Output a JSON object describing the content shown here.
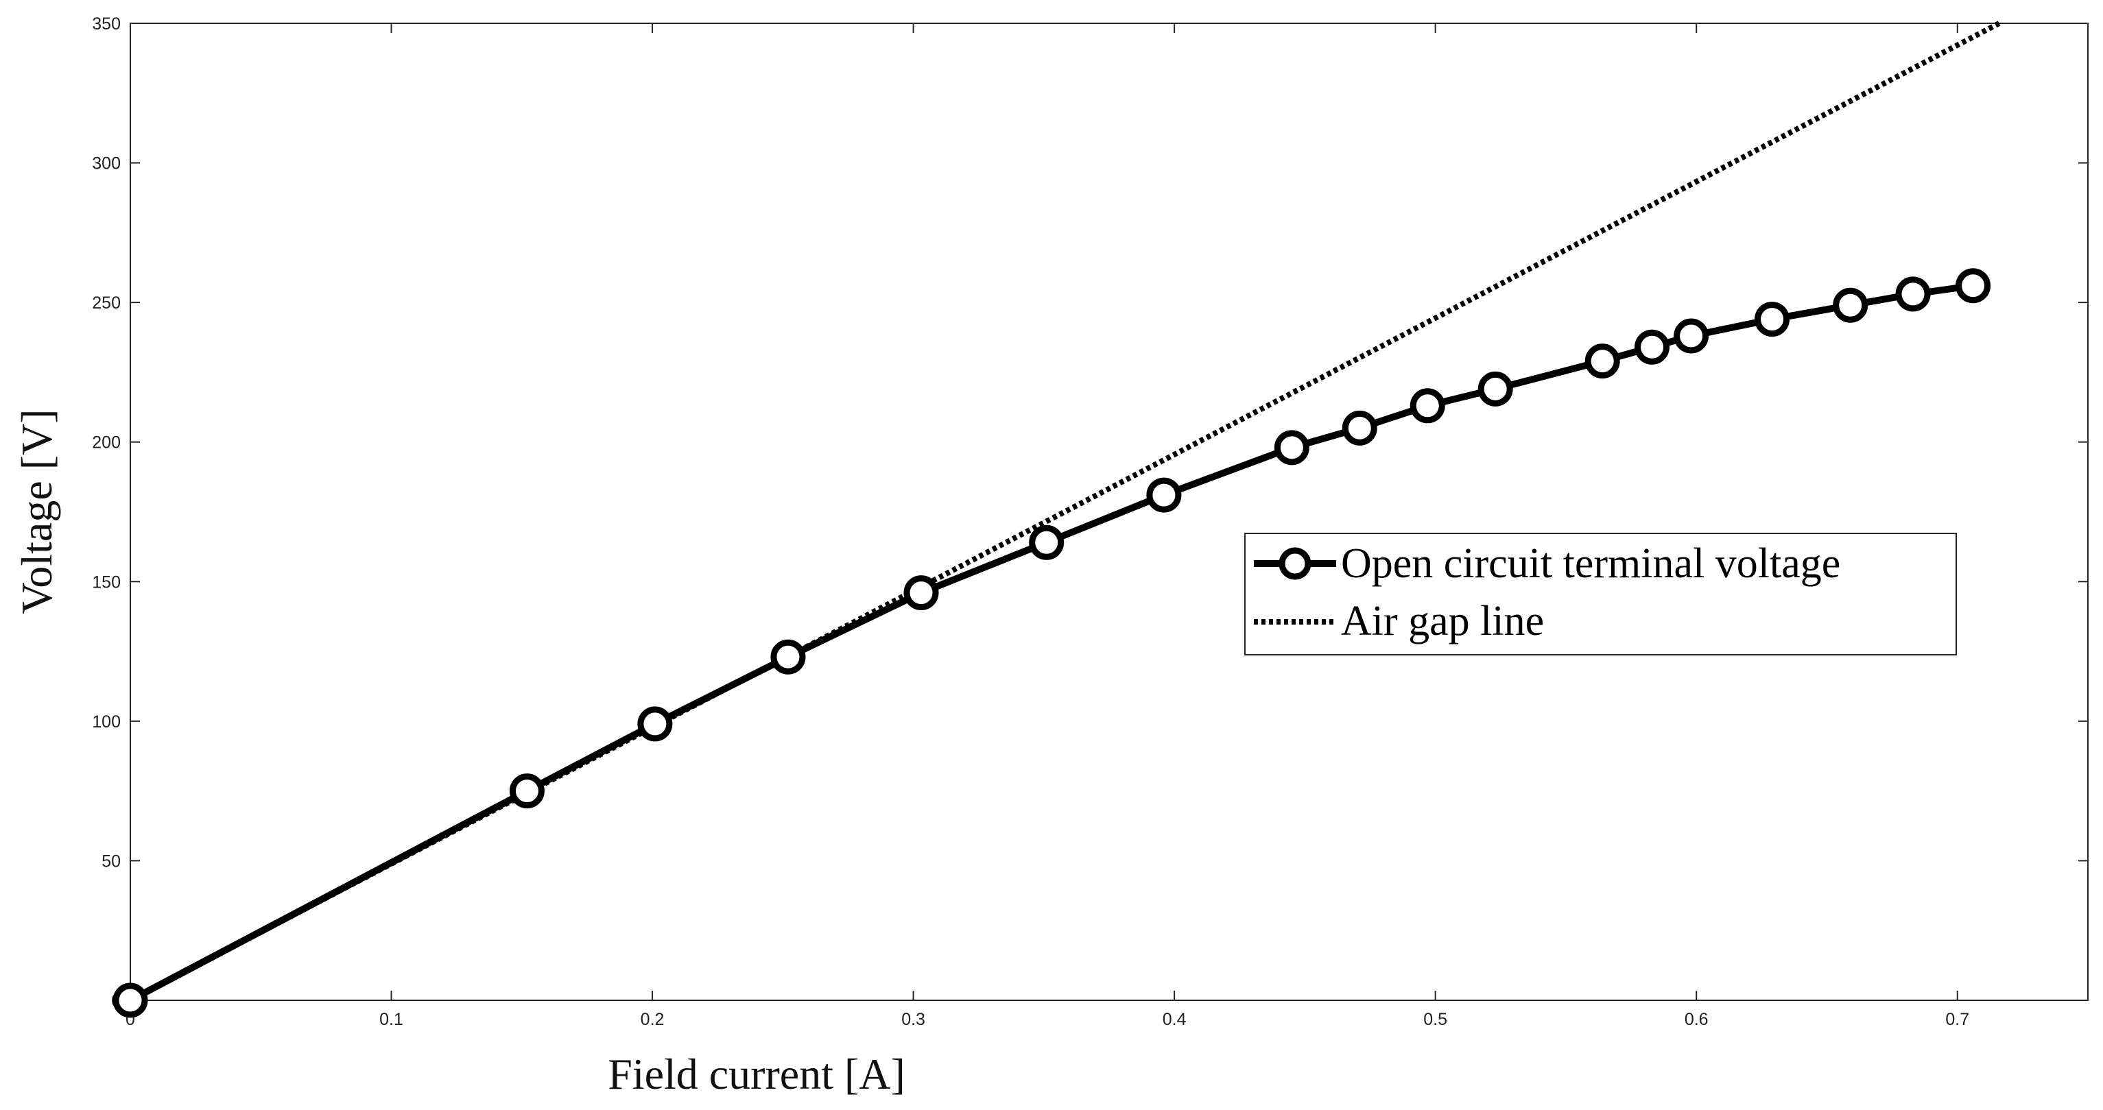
{
  "chart_data": {
    "type": "line",
    "xlabel": "Field current [A]",
    "ylabel": "Voltage [V]",
    "xlim": [
      0,
      0.75
    ],
    "ylim": [
      0,
      350
    ],
    "xticks": [
      "0",
      "0.1",
      "0.2",
      "0.3",
      "0.4",
      "0.5",
      "0.6",
      "0.7"
    ],
    "yticks": [
      "0",
      "50",
      "100",
      "150",
      "200",
      "250",
      "300",
      "350"
    ],
    "grid": false,
    "legend_position": "center-right",
    "series": [
      {
        "name": "Open circuit terminal voltage",
        "style": "solid-circle-markers",
        "color": "#000000",
        "x": [
          0,
          0.152,
          0.201,
          0.252,
          0.303,
          0.351,
          0.396,
          0.445,
          0.471,
          0.497,
          0.523,
          0.564,
          0.583,
          0.598,
          0.629,
          0.659,
          0.683,
          0.706
        ],
        "y": [
          0,
          75,
          99,
          123,
          146,
          164,
          181,
          198,
          205,
          213,
          219,
          229,
          234,
          238,
          244,
          249,
          253,
          256
        ]
      },
      {
        "name": "Air gap line",
        "style": "dotted",
        "color": "#000000",
        "x": [
          0,
          0.716
        ],
        "y": [
          0,
          350
        ]
      }
    ]
  }
}
